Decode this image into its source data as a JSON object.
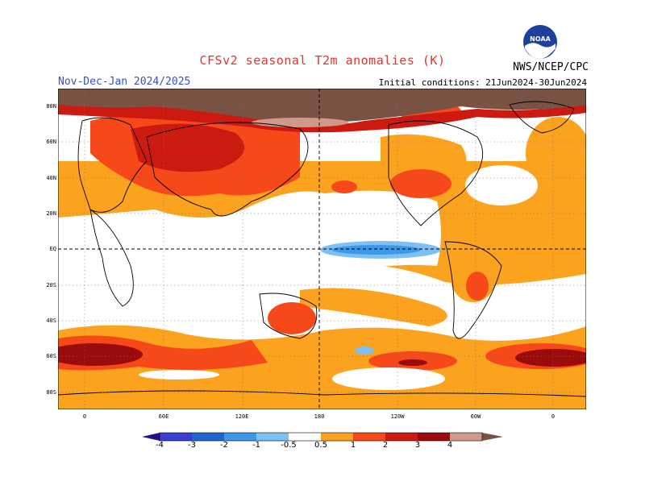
{
  "header": {
    "title": "CFSv2 seasonal T2m anomalies (K)",
    "period": "Nov-Dec-Jan 2024/2025",
    "initial_conditions": "Initial conditions: 21Jun2024-30Jun2024",
    "agency": "NWS/NCEP/CPC",
    "logo_text": "NOAA"
  },
  "map": {
    "lat_labels": [
      "80N",
      "60N",
      "40N",
      "20N",
      "EQ",
      "20S",
      "40S",
      "60S",
      "80S"
    ],
    "lon_labels": [
      "0",
      "60E",
      "120E",
      "180",
      "120W",
      "60W",
      "0"
    ]
  },
  "colorbar": {
    "labels": [
      "-4",
      "-3",
      "-2",
      "-1",
      "-0.5",
      "0.5",
      "1",
      "2",
      "3",
      "4"
    ],
    "colors": [
      "#2a0f8a",
      "#3a3fd4",
      "#1f66d0",
      "#3e98e8",
      "#7ec0f4",
      "#ffffff",
      "#fba31e",
      "#f7481a",
      "#cc1a10",
      "#9a0b0b",
      "#cf9a8a",
      "#7a5244"
    ]
  }
}
